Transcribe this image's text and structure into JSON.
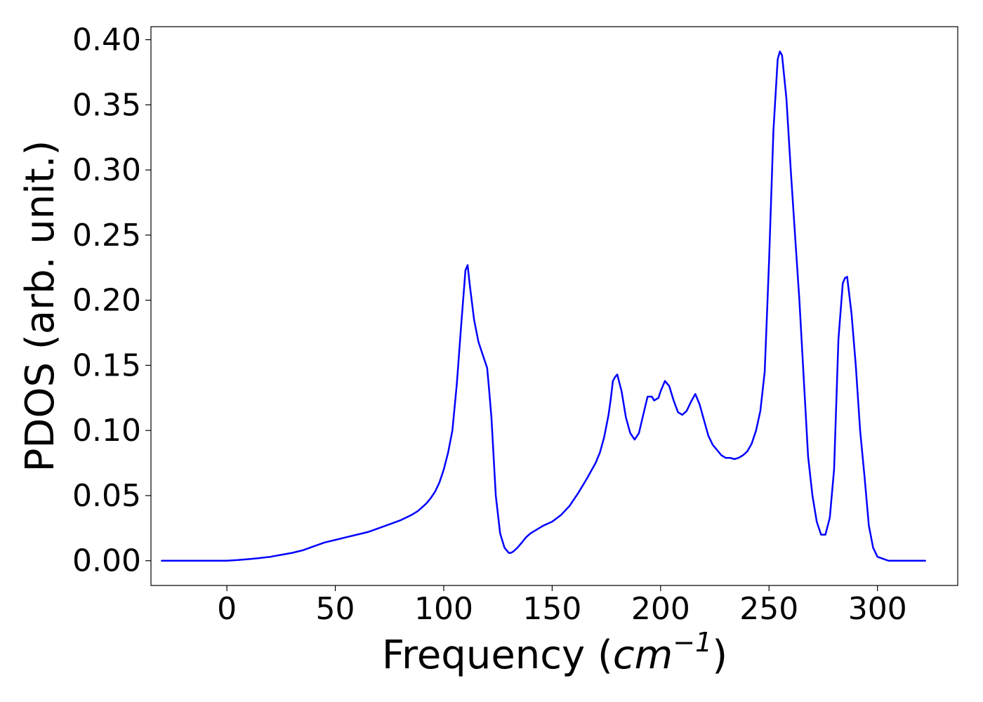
{
  "chart_data": {
    "type": "line",
    "xlabel": "Frequency",
    "xlabel_unit_open": "(",
    "xlabel_unit_base": "cm",
    "xlabel_unit_exp": "−1",
    "xlabel_unit_close": ")",
    "ylabel": "PDOS (arb. unit.)",
    "xlim": [
      -35,
      337
    ],
    "ylim": [
      -0.019,
      0.41
    ],
    "xticks": [
      0,
      50,
      100,
      150,
      200,
      250,
      300
    ],
    "xtick_labels": [
      "0",
      "50",
      "100",
      "150",
      "200",
      "250",
      "300"
    ],
    "yticks": [
      0.0,
      0.05,
      0.1,
      0.15,
      0.2,
      0.25,
      0.3,
      0.35,
      0.4
    ],
    "ytick_labels": [
      "0.00",
      "0.05",
      "0.10",
      "0.15",
      "0.20",
      "0.25",
      "0.30",
      "0.35",
      "0.40"
    ],
    "grid": false,
    "series": [
      {
        "color": "#0000ff",
        "x": [
          -30,
          -20,
          -10,
          0,
          5,
          10,
          15,
          20,
          25,
          30,
          35,
          40,
          45,
          50,
          55,
          60,
          65,
          70,
          75,
          80,
          85,
          88,
          90,
          92,
          94,
          96,
          98,
          100,
          102,
          104,
          106,
          108,
          110,
          111,
          112,
          114,
          116,
          118,
          120,
          121,
          122,
          124,
          126,
          128,
          130,
          131,
          132,
          134,
          136,
          138,
          140,
          143,
          146,
          150,
          154,
          158,
          162,
          166,
          170,
          172,
          174,
          176,
          177,
          178,
          179,
          180,
          182,
          184,
          186,
          188,
          190,
          192,
          194,
          196,
          197,
          199,
          200,
          202,
          204,
          206,
          208,
          210,
          212,
          214,
          216,
          218,
          220,
          222,
          224,
          226,
          228,
          230,
          232,
          234,
          236,
          238,
          240,
          242,
          244,
          246,
          248,
          250,
          252,
          254,
          255,
          256,
          258,
          260,
          262,
          264,
          266,
          268,
          270,
          272,
          274,
          276,
          278,
          280,
          282,
          284,
          285,
          286,
          288,
          290,
          292,
          294,
          296,
          298,
          300,
          305,
          310,
          322
        ],
        "y": [
          0.0,
          0.0,
          0.0,
          0.0,
          0.0005,
          0.0012,
          0.002,
          0.003,
          0.0045,
          0.006,
          0.008,
          0.011,
          0.014,
          0.016,
          0.018,
          0.02,
          0.022,
          0.025,
          0.028,
          0.031,
          0.035,
          0.038,
          0.041,
          0.044,
          0.048,
          0.053,
          0.06,
          0.07,
          0.083,
          0.1,
          0.135,
          0.18,
          0.223,
          0.227,
          0.212,
          0.185,
          0.168,
          0.158,
          0.148,
          0.13,
          0.11,
          0.05,
          0.021,
          0.01,
          0.006,
          0.006,
          0.007,
          0.01,
          0.014,
          0.018,
          0.021,
          0.024,
          0.027,
          0.03,
          0.035,
          0.042,
          0.052,
          0.063,
          0.075,
          0.083,
          0.095,
          0.112,
          0.124,
          0.138,
          0.141,
          0.143,
          0.13,
          0.11,
          0.098,
          0.093,
          0.098,
          0.112,
          0.126,
          0.126,
          0.123,
          0.125,
          0.13,
          0.138,
          0.134,
          0.123,
          0.114,
          0.112,
          0.115,
          0.122,
          0.128,
          0.12,
          0.108,
          0.096,
          0.089,
          0.085,
          0.081,
          0.079,
          0.079,
          0.078,
          0.079,
          0.081,
          0.084,
          0.09,
          0.1,
          0.115,
          0.145,
          0.23,
          0.33,
          0.385,
          0.391,
          0.388,
          0.355,
          0.3,
          0.25,
          0.2,
          0.14,
          0.08,
          0.05,
          0.03,
          0.02,
          0.02,
          0.033,
          0.07,
          0.17,
          0.213,
          0.217,
          0.218,
          0.19,
          0.15,
          0.1,
          0.065,
          0.027,
          0.01,
          0.003,
          0.0,
          0.0,
          0.0
        ]
      }
    ]
  }
}
